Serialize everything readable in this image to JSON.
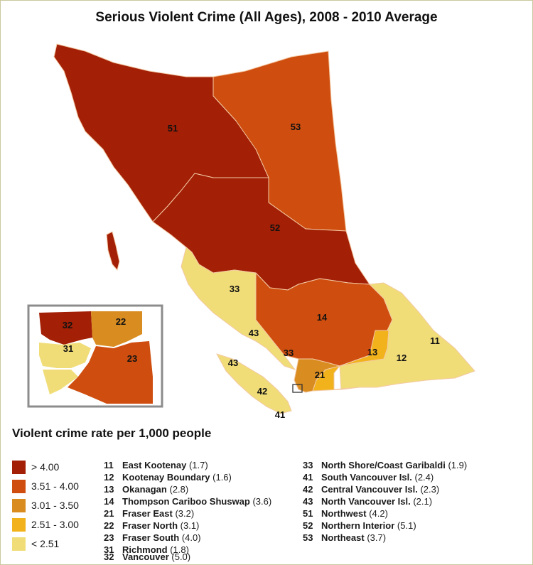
{
  "title": "Serious Violent Crime (All Ages), 2008 - 2010 Average",
  "colors": {
    "gt_4_00": "#a31f05",
    "r_3_51_4_00": "#cf4e0f",
    "r_3_01_3_50": "#d98c20",
    "r_2_51_3_00": "#f2b21c",
    "lt_2_51": "#f0dd78",
    "boundary": "#f3c9a4",
    "inset_border": "#8c8c8c"
  },
  "map_labels": {
    "r51": "51",
    "r53": "53",
    "r52": "52",
    "r33a": "33",
    "r14": "14",
    "r43a": "43",
    "r33b": "33",
    "r43b": "43",
    "r13": "13",
    "r12": "12",
    "r11": "11",
    "r21": "21",
    "r42": "42",
    "r41": "41"
  },
  "inset_labels": {
    "r32": "32",
    "r22": "22",
    "r31": "31",
    "r23": "23"
  },
  "legend": {
    "title": "Violent crime rate per 1,000 people",
    "classes": [
      {
        "label": "> 4.00",
        "color": "#a31f05"
      },
      {
        "label": "3.51 - 4.00",
        "color": "#cf4e0f"
      },
      {
        "label": "3.01 - 3.50",
        "color": "#d98c20"
      },
      {
        "label": "2.51 - 3.00",
        "color": "#f2b21c"
      },
      {
        "label": "< 2.51",
        "color": "#f0dd78"
      }
    ]
  },
  "regions_col1": [
    {
      "code": "11",
      "name": "East Kootenay",
      "rate": "(1.7)"
    },
    {
      "code": "12",
      "name": "Kootenay Boundary",
      "rate": "(1.6)"
    },
    {
      "code": "13",
      "name": "Okanagan",
      "rate": "(2.8)"
    },
    {
      "code": "14",
      "name": "Thompson Cariboo Shuswap",
      "rate": "(3.6)"
    },
    {
      "code": "21",
      "name": "Fraser East",
      "rate": "(3.2)"
    },
    {
      "code": "22",
      "name": "Fraser North",
      "rate": "(3.1)"
    },
    {
      "code": "23",
      "name": "Fraser South",
      "rate": "(4.0)"
    },
    {
      "code": "31",
      "name": "Richmond",
      "rate": "(1.8)"
    },
    {
      "code": "32",
      "name": "Vancouver",
      "rate": "(5.0)"
    }
  ],
  "regions_col2": [
    {
      "code": "33",
      "name": "North Shore/Coast Garibaldi",
      "rate": "(1.9)"
    },
    {
      "code": "41",
      "name": "South Vancouver Isl.",
      "rate": "(2.4)"
    },
    {
      "code": "42",
      "name": "Central Vancouver Isl.",
      "rate": "(2.3)"
    },
    {
      "code": "43",
      "name": "North Vancouver Isl.",
      "rate": "(2.1)"
    },
    {
      "code": "51",
      "name": "Northwest",
      "rate": "(4.2)"
    },
    {
      "code": "52",
      "name": "Northern Interior",
      "rate": "(5.1)"
    },
    {
      "code": "53",
      "name": "Northeast",
      "rate": "(3.7)"
    }
  ]
}
